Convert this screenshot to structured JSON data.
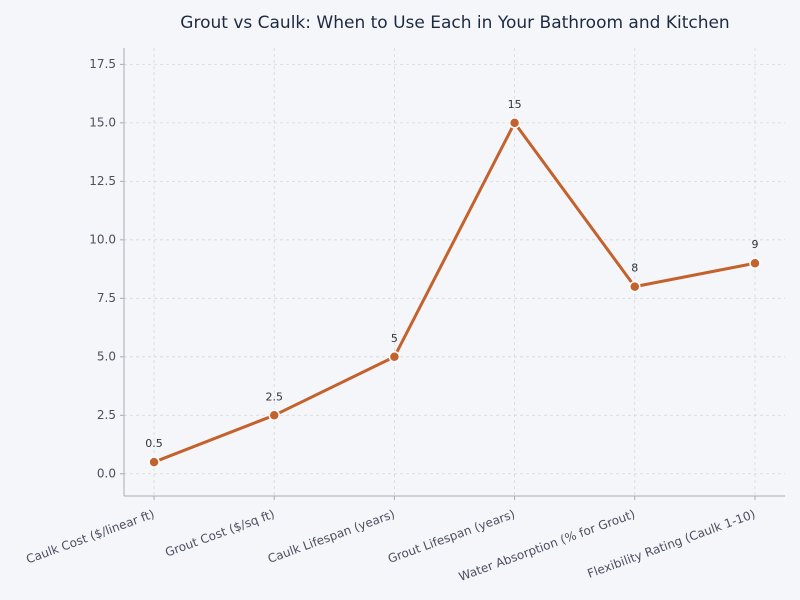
{
  "chart_data": {
    "type": "line",
    "title": "Grout vs Caulk: When to Use Each in Your Bathroom and Kitchen",
    "categories": [
      "Caulk Cost ($/linear ft)",
      "Grout Cost ($/sq ft)",
      "Caulk Lifespan (years)",
      "Grout Lifespan (years)",
      "Water Absorption (% for Grout)",
      "Flexibility Rating (Caulk 1-10)"
    ],
    "values": [
      0.5,
      2.5,
      5,
      15,
      8,
      9
    ],
    "color": "#c4622d",
    "ylim": [
      -0.95,
      18.2
    ],
    "yticks": [
      {
        "value": 0,
        "label": "0.0"
      },
      2.5,
      {
        "value": 5,
        "label": "5.0"
      },
      7.5,
      {
        "value": 10,
        "label": "10.0"
      },
      12.5,
      {
        "value": 15,
        "label": "15.0"
      },
      17.5
    ],
    "grid": true
  }
}
